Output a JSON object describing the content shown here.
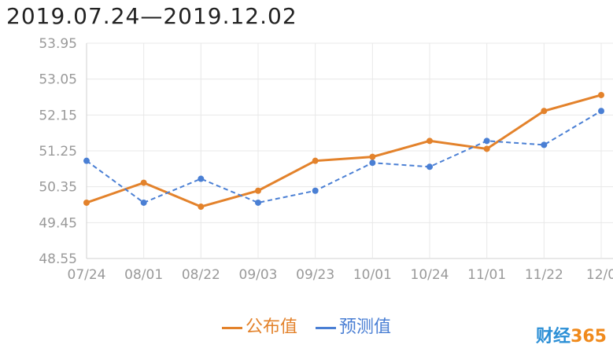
{
  "title": "2019.07.24—2019.12.02",
  "colors": {
    "published": "#e3822b",
    "forecast": "#4a7fd4",
    "grid": "#e8e8e8",
    "axis": "#d0d0d0",
    "tick": "#999999"
  },
  "chart_data": {
    "type": "line",
    "title": "2019.07.24—2019.12.02",
    "xlabel": "",
    "ylabel": "",
    "categories": [
      "07/24",
      "08/01",
      "08/22",
      "09/03",
      "09/23",
      "10/01",
      "10/24",
      "11/01",
      "11/22",
      "12/0"
    ],
    "yticks": [
      "53.95",
      "53.05",
      "52.15",
      "51.25",
      "50.35",
      "49.45",
      "48.55"
    ],
    "ylim": [
      48.55,
      53.95
    ],
    "grid": true,
    "legend_position": "bottom",
    "series": [
      {
        "name": "公布值",
        "style": "solid",
        "values": [
          49.95,
          50.45,
          49.85,
          50.25,
          51.0,
          51.1,
          51.5,
          51.3,
          52.25,
          52.65
        ]
      },
      {
        "name": "预测值",
        "style": "dashed",
        "values": [
          51.0,
          49.95,
          50.55,
          49.95,
          50.25,
          50.95,
          50.85,
          51.5,
          51.4,
          52.25
        ]
      }
    ]
  },
  "legend": {
    "published": "公布值",
    "forecast": "预测值"
  },
  "watermark": {
    "brand": "财经",
    "number": "365"
  }
}
